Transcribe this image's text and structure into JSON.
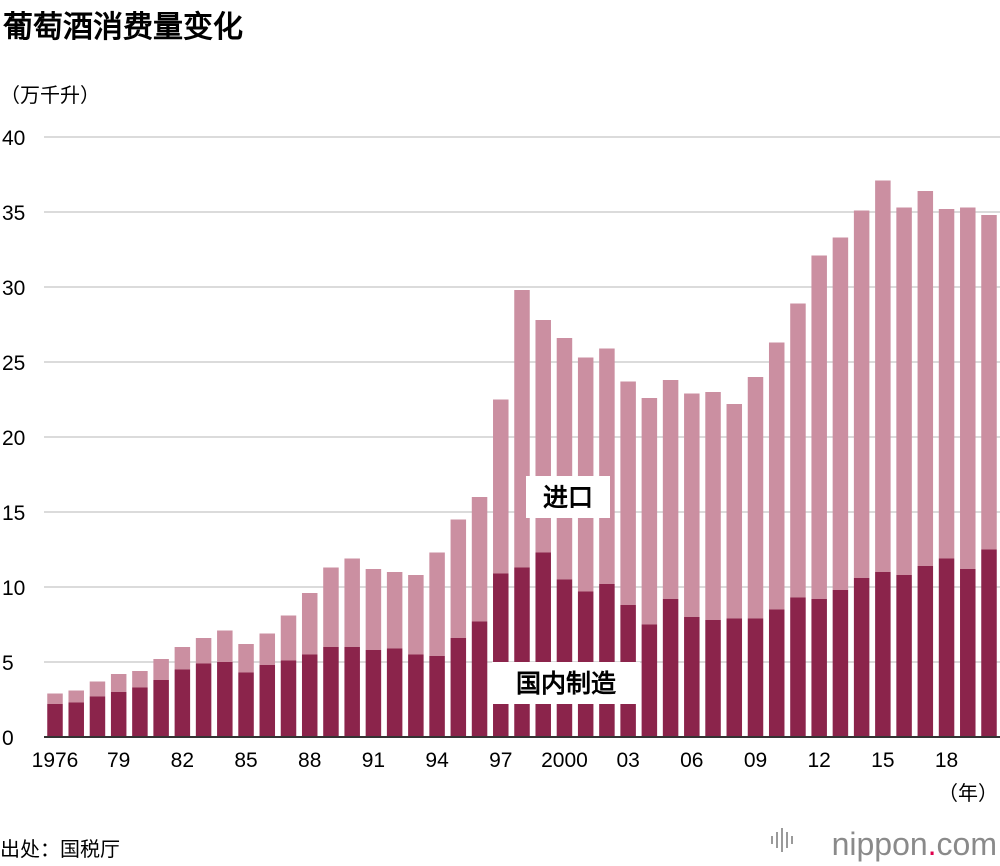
{
  "title": "葡萄酒消费量变化",
  "unit_label": "（万千升）",
  "year_unit": "（年）",
  "source": "出处：国税厅",
  "brand": {
    "name": "nippon",
    "dot": ".",
    "suffix": "com"
  },
  "colors": {
    "domestic": "#8b244b",
    "imported": "#cb8fa1",
    "grid": "#cfcfcf",
    "axis": "#333333",
    "brand_dot": "#e0004d"
  },
  "chart_data": {
    "type": "bar",
    "stacked": true,
    "title": "葡萄酒消费量变化",
    "ylabel": "（万千升）",
    "xlabel": "（年）",
    "ylim": [
      0,
      40
    ],
    "yticks": [
      0,
      5,
      10,
      15,
      20,
      25,
      30,
      35,
      40
    ],
    "xtick_labels": [
      {
        "index": 0,
        "label": "1976"
      },
      {
        "index": 3,
        "label": "79"
      },
      {
        "index": 6,
        "label": "82"
      },
      {
        "index": 9,
        "label": "85"
      },
      {
        "index": 12,
        "label": "88"
      },
      {
        "index": 15,
        "label": "91"
      },
      {
        "index": 18,
        "label": "94"
      },
      {
        "index": 21,
        "label": "97"
      },
      {
        "index": 24,
        "label": "2000"
      },
      {
        "index": 27,
        "label": "03"
      },
      {
        "index": 30,
        "label": "06"
      },
      {
        "index": 33,
        "label": "09"
      },
      {
        "index": 36,
        "label": "12"
      },
      {
        "index": 39,
        "label": "15"
      },
      {
        "index": 42,
        "label": "18"
      }
    ],
    "categories": [
      1976,
      1977,
      1978,
      1979,
      1980,
      1981,
      1982,
      1983,
      1984,
      1985,
      1986,
      1987,
      1988,
      1989,
      1990,
      1991,
      1992,
      1993,
      1994,
      1995,
      1996,
      1997,
      1998,
      1999,
      2000,
      2001,
      2002,
      2003,
      2004,
      2005,
      2006,
      2007,
      2008,
      2009,
      2010,
      2011,
      2012,
      2013,
      2014,
      2015,
      2016,
      2017,
      2018,
      2019,
      2020
    ],
    "series": [
      {
        "name": "国内制造",
        "label": "国内制造",
        "values": [
          2.2,
          2.3,
          2.7,
          3.0,
          3.3,
          3.8,
          4.5,
          4.9,
          5.0,
          4.3,
          4.8,
          5.1,
          5.5,
          6.0,
          6.0,
          5.8,
          5.9,
          5.5,
          5.4,
          6.6,
          7.7,
          10.9,
          11.3,
          12.3,
          10.5,
          9.7,
          10.2,
          8.8,
          7.5,
          9.2,
          8.0,
          7.8,
          7.9,
          7.9,
          8.5,
          9.3,
          9.2,
          9.8,
          10.6,
          11.0,
          10.8,
          11.4,
          11.9,
          11.2,
          12.5
        ]
      },
      {
        "name": "进口",
        "label": "进口",
        "values": [
          0.7,
          0.8,
          1.0,
          1.2,
          1.1,
          1.4,
          1.5,
          1.7,
          2.1,
          1.9,
          2.1,
          3.0,
          4.1,
          5.3,
          5.9,
          5.4,
          5.1,
          5.3,
          6.9,
          7.9,
          8.3,
          11.6,
          18.5,
          15.5,
          16.1,
          15.6,
          15.7,
          14.9,
          15.1,
          14.6,
          14.9,
          15.2,
          14.3,
          16.1,
          17.8,
          19.6,
          22.9,
          23.5,
          24.5,
          26.1,
          24.5,
          25.0,
          23.3,
          24.1,
          22.3
        ]
      }
    ],
    "annotations": [
      {
        "text": "进口",
        "series": "进口"
      },
      {
        "text": "国内制造",
        "series": "国内制造"
      }
    ]
  }
}
